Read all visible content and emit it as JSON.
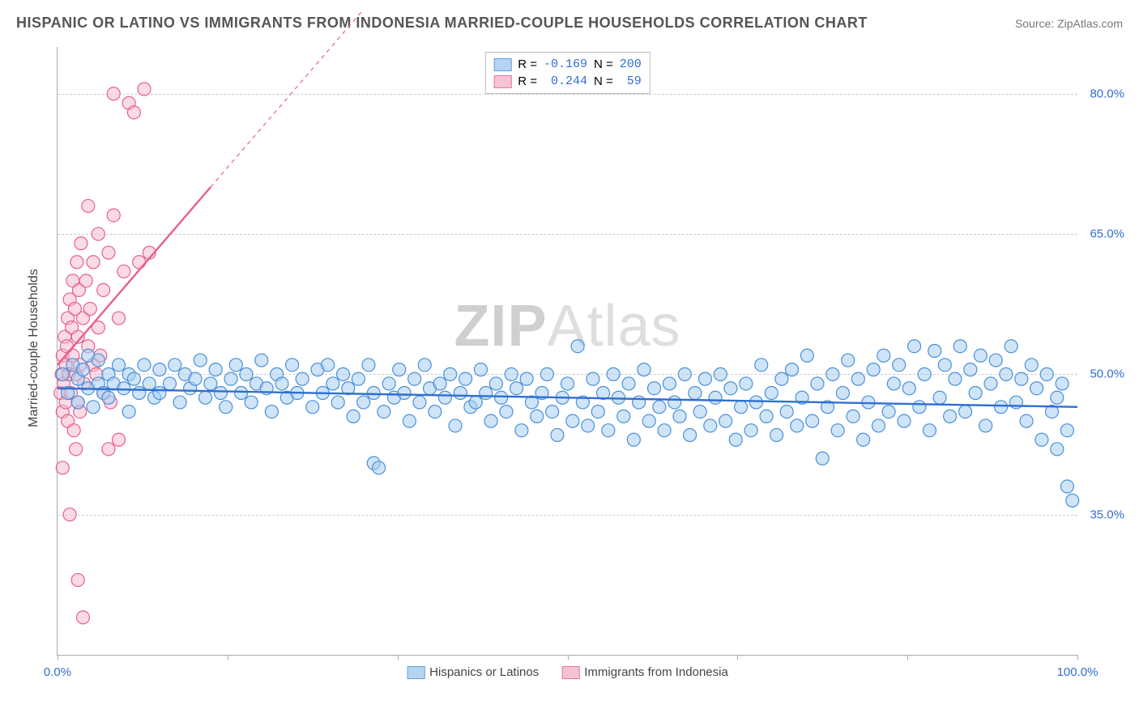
{
  "title": "HISPANIC OR LATINO VS IMMIGRANTS FROM INDONESIA MARRIED-COUPLE HOUSEHOLDS CORRELATION CHART",
  "source": "Source: ZipAtlas.com",
  "watermark_a": "ZIP",
  "watermark_b": "Atlas",
  "ylabel": "Married-couple Households",
  "chart": {
    "type": "scatter",
    "background_color": "#ffffff",
    "grid_color": "#cccccc",
    "axis_color": "#aaaaaa",
    "tick_label_color": "#2f6fd0",
    "xlim": [
      0,
      100
    ],
    "ylim": [
      20,
      85
    ],
    "ytick_positions": [
      35,
      50,
      65,
      80
    ],
    "ytick_labels": [
      "35.0%",
      "50.0%",
      "65.0%",
      "80.0%"
    ],
    "xtick_positions": [
      0,
      16.67,
      33.33,
      50,
      66.67,
      83.33,
      100
    ],
    "xaxis_label_left": "0.0%",
    "xaxis_label_right": "100.0%",
    "marker_radius": 8,
    "marker_stroke_width": 1.2,
    "trendline_width": 2.4,
    "series": [
      {
        "key": "blue",
        "label": "Hispanics or Latinos",
        "fill": "#a8cdf0",
        "stroke": "#4a90d9",
        "fill_opacity": 0.55,
        "R": "-0.169",
        "N": "200",
        "trend": {
          "x1": 0,
          "y1": 48.5,
          "x2": 100,
          "y2": 46.5,
          "color": "#2f6fd0",
          "dash": ""
        },
        "points": [
          [
            0.5,
            50
          ],
          [
            1,
            48
          ],
          [
            1.5,
            51
          ],
          [
            2,
            49.5
          ],
          [
            2,
            47
          ],
          [
            2.5,
            50.5
          ],
          [
            3,
            48.5
          ],
          [
            3,
            52
          ],
          [
            3.5,
            46.5
          ],
          [
            4,
            49
          ],
          [
            4,
            51.5
          ],
          [
            4.5,
            48
          ],
          [
            5,
            50
          ],
          [
            5,
            47.5
          ],
          [
            5.5,
            49
          ],
          [
            6,
            51
          ],
          [
            6.5,
            48.5
          ],
          [
            7,
            50
          ],
          [
            7,
            46
          ],
          [
            7.5,
            49.5
          ],
          [
            8,
            48
          ],
          [
            8.5,
            51
          ],
          [
            9,
            49
          ],
          [
            9.5,
            47.5
          ],
          [
            10,
            50.5
          ],
          [
            10,
            48
          ],
          [
            11,
            49
          ],
          [
            11.5,
            51
          ],
          [
            12,
            47
          ],
          [
            12.5,
            50
          ],
          [
            13,
            48.5
          ],
          [
            13.5,
            49.5
          ],
          [
            14,
            51.5
          ],
          [
            14.5,
            47.5
          ],
          [
            15,
            49
          ],
          [
            15.5,
            50.5
          ],
          [
            16,
            48
          ],
          [
            16.5,
            46.5
          ],
          [
            17,
            49.5
          ],
          [
            17.5,
            51
          ],
          [
            18,
            48
          ],
          [
            18.5,
            50
          ],
          [
            19,
            47
          ],
          [
            19.5,
            49
          ],
          [
            20,
            51.5
          ],
          [
            20.5,
            48.5
          ],
          [
            21,
            46
          ],
          [
            21.5,
            50
          ],
          [
            22,
            49
          ],
          [
            22.5,
            47.5
          ],
          [
            23,
            51
          ],
          [
            23.5,
            48
          ],
          [
            24,
            49.5
          ],
          [
            25,
            46.5
          ],
          [
            25.5,
            50.5
          ],
          [
            26,
            48
          ],
          [
            26.5,
            51
          ],
          [
            27,
            49
          ],
          [
            27.5,
            47
          ],
          [
            28,
            50
          ],
          [
            28.5,
            48.5
          ],
          [
            29,
            45.5
          ],
          [
            29.5,
            49.5
          ],
          [
            30,
            47
          ],
          [
            30.5,
            51
          ],
          [
            31,
            48
          ],
          [
            31,
            40.5
          ],
          [
            31.5,
            40
          ],
          [
            32,
            46
          ],
          [
            32.5,
            49
          ],
          [
            33,
            47.5
          ],
          [
            33.5,
            50.5
          ],
          [
            34,
            48
          ],
          [
            34.5,
            45
          ],
          [
            35,
            49.5
          ],
          [
            35.5,
            47
          ],
          [
            36,
            51
          ],
          [
            36.5,
            48.5
          ],
          [
            37,
            46
          ],
          [
            37.5,
            49
          ],
          [
            38,
            47.5
          ],
          [
            38.5,
            50
          ],
          [
            39,
            44.5
          ],
          [
            39.5,
            48
          ],
          [
            40,
            49.5
          ],
          [
            40.5,
            46.5
          ],
          [
            41,
            47
          ],
          [
            41.5,
            50.5
          ],
          [
            42,
            48
          ],
          [
            42.5,
            45
          ],
          [
            43,
            49
          ],
          [
            43.5,
            47.5
          ],
          [
            44,
            46
          ],
          [
            44.5,
            50
          ],
          [
            45,
            48.5
          ],
          [
            45.5,
            44
          ],
          [
            46,
            49.5
          ],
          [
            46.5,
            47
          ],
          [
            47,
            45.5
          ],
          [
            47.5,
            48
          ],
          [
            48,
            50
          ],
          [
            48.5,
            46
          ],
          [
            49,
            43.5
          ],
          [
            49.5,
            47.5
          ],
          [
            50,
            49
          ],
          [
            50.5,
            45
          ],
          [
            51,
            53
          ],
          [
            51.5,
            47
          ],
          [
            52,
            44.5
          ],
          [
            52.5,
            49.5
          ],
          [
            53,
            46
          ],
          [
            53.5,
            48
          ],
          [
            54,
            44
          ],
          [
            54.5,
            50
          ],
          [
            55,
            47.5
          ],
          [
            55.5,
            45.5
          ],
          [
            56,
            49
          ],
          [
            56.5,
            43
          ],
          [
            57,
            47
          ],
          [
            57.5,
            50.5
          ],
          [
            58,
            45
          ],
          [
            58.5,
            48.5
          ],
          [
            59,
            46.5
          ],
          [
            59.5,
            44
          ],
          [
            60,
            49
          ],
          [
            60.5,
            47
          ],
          [
            61,
            45.5
          ],
          [
            61.5,
            50
          ],
          [
            62,
            43.5
          ],
          [
            62.5,
            48
          ],
          [
            63,
            46
          ],
          [
            63.5,
            49.5
          ],
          [
            64,
            44.5
          ],
          [
            64.5,
            47.5
          ],
          [
            65,
            50
          ],
          [
            65.5,
            45
          ],
          [
            66,
            48.5
          ],
          [
            66.5,
            43
          ],
          [
            67,
            46.5
          ],
          [
            67.5,
            49
          ],
          [
            68,
            44
          ],
          [
            68.5,
            47
          ],
          [
            69,
            51
          ],
          [
            69.5,
            45.5
          ],
          [
            70,
            48
          ],
          [
            70.5,
            43.5
          ],
          [
            71,
            49.5
          ],
          [
            71.5,
            46
          ],
          [
            72,
            50.5
          ],
          [
            72.5,
            44.5
          ],
          [
            73,
            47.5
          ],
          [
            73.5,
            52
          ],
          [
            74,
            45
          ],
          [
            74.5,
            49
          ],
          [
            75,
            41
          ],
          [
            75.5,
            46.5
          ],
          [
            76,
            50
          ],
          [
            76.5,
            44
          ],
          [
            77,
            48
          ],
          [
            77.5,
            51.5
          ],
          [
            78,
            45.5
          ],
          [
            78.5,
            49.5
          ],
          [
            79,
            43
          ],
          [
            79.5,
            47
          ],
          [
            80,
            50.5
          ],
          [
            80.5,
            44.5
          ],
          [
            81,
            52
          ],
          [
            81.5,
            46
          ],
          [
            82,
            49
          ],
          [
            82.5,
            51
          ],
          [
            83,
            45
          ],
          [
            83.5,
            48.5
          ],
          [
            84,
            53
          ],
          [
            84.5,
            46.5
          ],
          [
            85,
            50
          ],
          [
            85.5,
            44
          ],
          [
            86,
            52.5
          ],
          [
            86.5,
            47.5
          ],
          [
            87,
            51
          ],
          [
            87.5,
            45.5
          ],
          [
            88,
            49.5
          ],
          [
            88.5,
            53
          ],
          [
            89,
            46
          ],
          [
            89.5,
            50.5
          ],
          [
            90,
            48
          ],
          [
            90.5,
            52
          ],
          [
            91,
            44.5
          ],
          [
            91.5,
            49
          ],
          [
            92,
            51.5
          ],
          [
            92.5,
            46.5
          ],
          [
            93,
            50
          ],
          [
            93.5,
            53
          ],
          [
            94,
            47
          ],
          [
            94.5,
            49.5
          ],
          [
            95,
            45
          ],
          [
            95.5,
            51
          ],
          [
            96,
            48.5
          ],
          [
            96.5,
            43
          ],
          [
            97,
            50
          ],
          [
            97.5,
            46
          ],
          [
            98,
            42
          ],
          [
            98.5,
            49
          ],
          [
            99,
            38
          ],
          [
            99.5,
            36.5
          ],
          [
            99,
            44
          ],
          [
            98,
            47.5
          ]
        ]
      },
      {
        "key": "pink",
        "label": "Immigrants from Indonesia",
        "fill": "#f6b8cb",
        "stroke": "#e75f8d",
        "fill_opacity": 0.5,
        "R": " 0.244",
        "N": " 59",
        "trend": {
          "x1": 0,
          "y1": 51,
          "x2": 15,
          "y2": 70,
          "x3": 30,
          "y3": 89,
          "color": "#e75f8d",
          "solid_until_x": 15
        },
        "points": [
          [
            0.3,
            48
          ],
          [
            0.4,
            50
          ],
          [
            0.5,
            46
          ],
          [
            0.5,
            52
          ],
          [
            0.6,
            49
          ],
          [
            0.7,
            54
          ],
          [
            0.8,
            47
          ],
          [
            0.8,
            51
          ],
          [
            0.9,
            53
          ],
          [
            1,
            56
          ],
          [
            1,
            45
          ],
          [
            1.1,
            50
          ],
          [
            1.2,
            58
          ],
          [
            1.3,
            48
          ],
          [
            1.4,
            55
          ],
          [
            1.5,
            52
          ],
          [
            1.5,
            60
          ],
          [
            1.6,
            44
          ],
          [
            1.7,
            57
          ],
          [
            1.8,
            50
          ],
          [
            1.9,
            62
          ],
          [
            2,
            54
          ],
          [
            2,
            47
          ],
          [
            2.1,
            59
          ],
          [
            2.2,
            51
          ],
          [
            2.3,
            64
          ],
          [
            2.5,
            56
          ],
          [
            2.6,
            49
          ],
          [
            2.8,
            60
          ],
          [
            3,
            53
          ],
          [
            3,
            68
          ],
          [
            3.2,
            57
          ],
          [
            3.5,
            62
          ],
          [
            3.5,
            51
          ],
          [
            4,
            65
          ],
          [
            4,
            55
          ],
          [
            4.5,
            59
          ],
          [
            4.5,
            48
          ],
          [
            5,
            63
          ],
          [
            5,
            42
          ],
          [
            5.5,
            67
          ],
          [
            5.5,
            80
          ],
          [
            6,
            56
          ],
          [
            6,
            43
          ],
          [
            6.5,
            61
          ],
          [
            7,
            79
          ],
          [
            7.5,
            78
          ],
          [
            8,
            62
          ],
          [
            8.5,
            80.5
          ],
          [
            9,
            63
          ],
          [
            1.2,
            35
          ],
          [
            2,
            28
          ],
          [
            2.5,
            24
          ],
          [
            0.5,
            40
          ],
          [
            1.8,
            42
          ],
          [
            2.2,
            46
          ],
          [
            3.8,
            50
          ],
          [
            4.2,
            52
          ],
          [
            5.2,
            47
          ]
        ]
      }
    ]
  },
  "legend_top": {
    "rlabel": "R = ",
    "nlabel": "   N = "
  }
}
